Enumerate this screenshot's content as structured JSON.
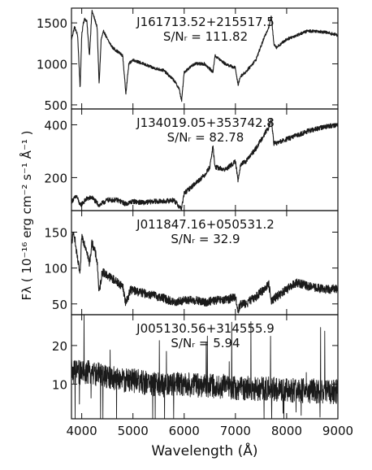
{
  "figure": {
    "ylabel": "Fλ ( 10⁻¹⁶ erg cm⁻² s⁻¹ Å⁻¹ )",
    "xlabel": "Wavelength (Å)"
  },
  "colors": {
    "line": "#1a1a1a",
    "axes": "#111111",
    "background": "#ffffff"
  },
  "chart_data": [
    {
      "type": "line",
      "id": "J161713.52+215517.5",
      "title": "J161713.52+215517.5",
      "subtitle": "S/Nᵣ = 111.82",
      "xlim": [
        3800,
        9000
      ],
      "ylim": [
        450,
        1680
      ],
      "yticks": [
        500,
        1000,
        1500
      ],
      "xticks": [
        4000,
        5000,
        6000,
        7000,
        8000,
        9000
      ],
      "series": [
        {
          "noise": 18,
          "x": [
            3800,
            3860,
            3920,
            3970,
            4000,
            4030,
            4060,
            4100,
            4150,
            4200,
            4250,
            4300,
            4340,
            4380,
            4430,
            4500,
            4600,
            4700,
            4800,
            4861,
            4920,
            5000,
            5200,
            5400,
            5600,
            5800,
            5900,
            5950,
            6000,
            6200,
            6400,
            6562,
            6600,
            6800,
            7000,
            7050,
            7100,
            7200,
            7400,
            7550,
            7650,
            7700,
            7750,
            7800,
            7900,
            8000,
            8200,
            8400,
            8600,
            8800,
            9000
          ],
          "y": [
            1300,
            1450,
            1350,
            700,
            1350,
            1500,
            1550,
            1520,
            1100,
            1650,
            1550,
            1450,
            750,
            1300,
            1400,
            1300,
            1200,
            1150,
            1100,
            640,
            1000,
            1050,
            1000,
            950,
            920,
            800,
            700,
            550,
            900,
            1000,
            1000,
            900,
            1100,
            1000,
            950,
            740,
            850,
            900,
            1050,
            1300,
            1450,
            1580,
            1250,
            1200,
            1250,
            1300,
            1350,
            1400,
            1400,
            1380,
            1350
          ]
        }
      ]
    },
    {
      "type": "line",
      "id": "J134019.05+353742.8",
      "title": "J134019.05+353742.8",
      "subtitle": "S/Nᵣ = 82.78",
      "xlim": [
        3800,
        9000
      ],
      "ylim": [
        75,
        460
      ],
      "yticks": [
        200,
        400
      ],
      "xticks": [
        4000,
        5000,
        6000,
        7000,
        8000,
        9000
      ],
      "series": [
        {
          "noise": 9,
          "x": [
            3800,
            3900,
            3970,
            4100,
            4200,
            4340,
            4500,
            4700,
            4861,
            5000,
            5200,
            5400,
            5600,
            5800,
            5900,
            5950,
            6000,
            6200,
            6400,
            6500,
            6562,
            6600,
            6800,
            7000,
            7050,
            7100,
            7200,
            7400,
            7550,
            7650,
            7700,
            7750,
            7800,
            8000,
            8200,
            8400,
            8600,
            8800,
            9000
          ],
          "y": [
            110,
            130,
            95,
            120,
            125,
            95,
            115,
            115,
            100,
            110,
            105,
            110,
            110,
            115,
            90,
            85,
            140,
            175,
            210,
            240,
            320,
            240,
            230,
            260,
            190,
            250,
            260,
            310,
            360,
            390,
            420,
            330,
            330,
            345,
            360,
            375,
            385,
            395,
            400
          ]
        }
      ]
    },
    {
      "type": "line",
      "id": "J011847.16+050531.2",
      "title": "J011847.16+050531.2",
      "subtitle": "S/Nᵣ = 32.9",
      "xlim": [
        3800,
        9000
      ],
      "ylim": [
        35,
        180
      ],
      "yticks": [
        50,
        100,
        150
      ],
      "xticks": [
        4000,
        5000,
        6000,
        7000,
        8000,
        9000
      ],
      "series": [
        {
          "noise": 6,
          "x": [
            3800,
            3850,
            3900,
            3970,
            4000,
            4050,
            4100,
            4150,
            4200,
            4250,
            4300,
            4340,
            4400,
            4500,
            4600,
            4700,
            4800,
            4861,
            4950,
            5200,
            5400,
            5600,
            5800,
            6000,
            6200,
            6400,
            6600,
            6800,
            7000,
            7050,
            7100,
            7200,
            7400,
            7550,
            7650,
            7700,
            7800,
            8000,
            8200,
            8400,
            8600,
            8800,
            9000
          ],
          "y": [
            135,
            150,
            120,
            90,
            145,
            135,
            125,
            105,
            135,
            125,
            110,
            65,
            95,
            90,
            85,
            80,
            75,
            50,
            70,
            65,
            62,
            58,
            52,
            55,
            55,
            52,
            55,
            55,
            60,
            40,
            50,
            50,
            60,
            70,
            78,
            55,
            60,
            70,
            80,
            75,
            72,
            70,
            72
          ]
        }
      ]
    },
    {
      "type": "line",
      "id": "J005130.56+314555.9",
      "title": "J005130.56+314555.9",
      "subtitle": "S/Nᵣ = 5.94",
      "xlim": [
        3800,
        9000
      ],
      "ylim": [
        1,
        28
      ],
      "yticks": [
        10,
        20
      ],
      "xticks": [
        4000,
        5000,
        6000,
        7000,
        8000,
        9000
      ],
      "series": [
        {
          "noise": 3.2,
          "x": [
            3800,
            4000,
            4200,
            4400,
            4600,
            4800,
            5000,
            5200,
            5400,
            5600,
            5800,
            6000,
            6200,
            6400,
            6600,
            6800,
            7000,
            7200,
            7400,
            7600,
            7800,
            8000,
            8200,
            8400,
            8600,
            8800,
            9000
          ],
          "y": [
            13,
            13,
            13,
            12,
            11.5,
            11,
            11,
            10.5,
            10,
            9.8,
            9.8,
            10,
            9.8,
            9.6,
            9.4,
            9.4,
            9,
            9,
            8.8,
            8.8,
            8.6,
            8.4,
            8.4,
            8.2,
            8.2,
            8,
            8
          ]
        }
      ]
    }
  ]
}
